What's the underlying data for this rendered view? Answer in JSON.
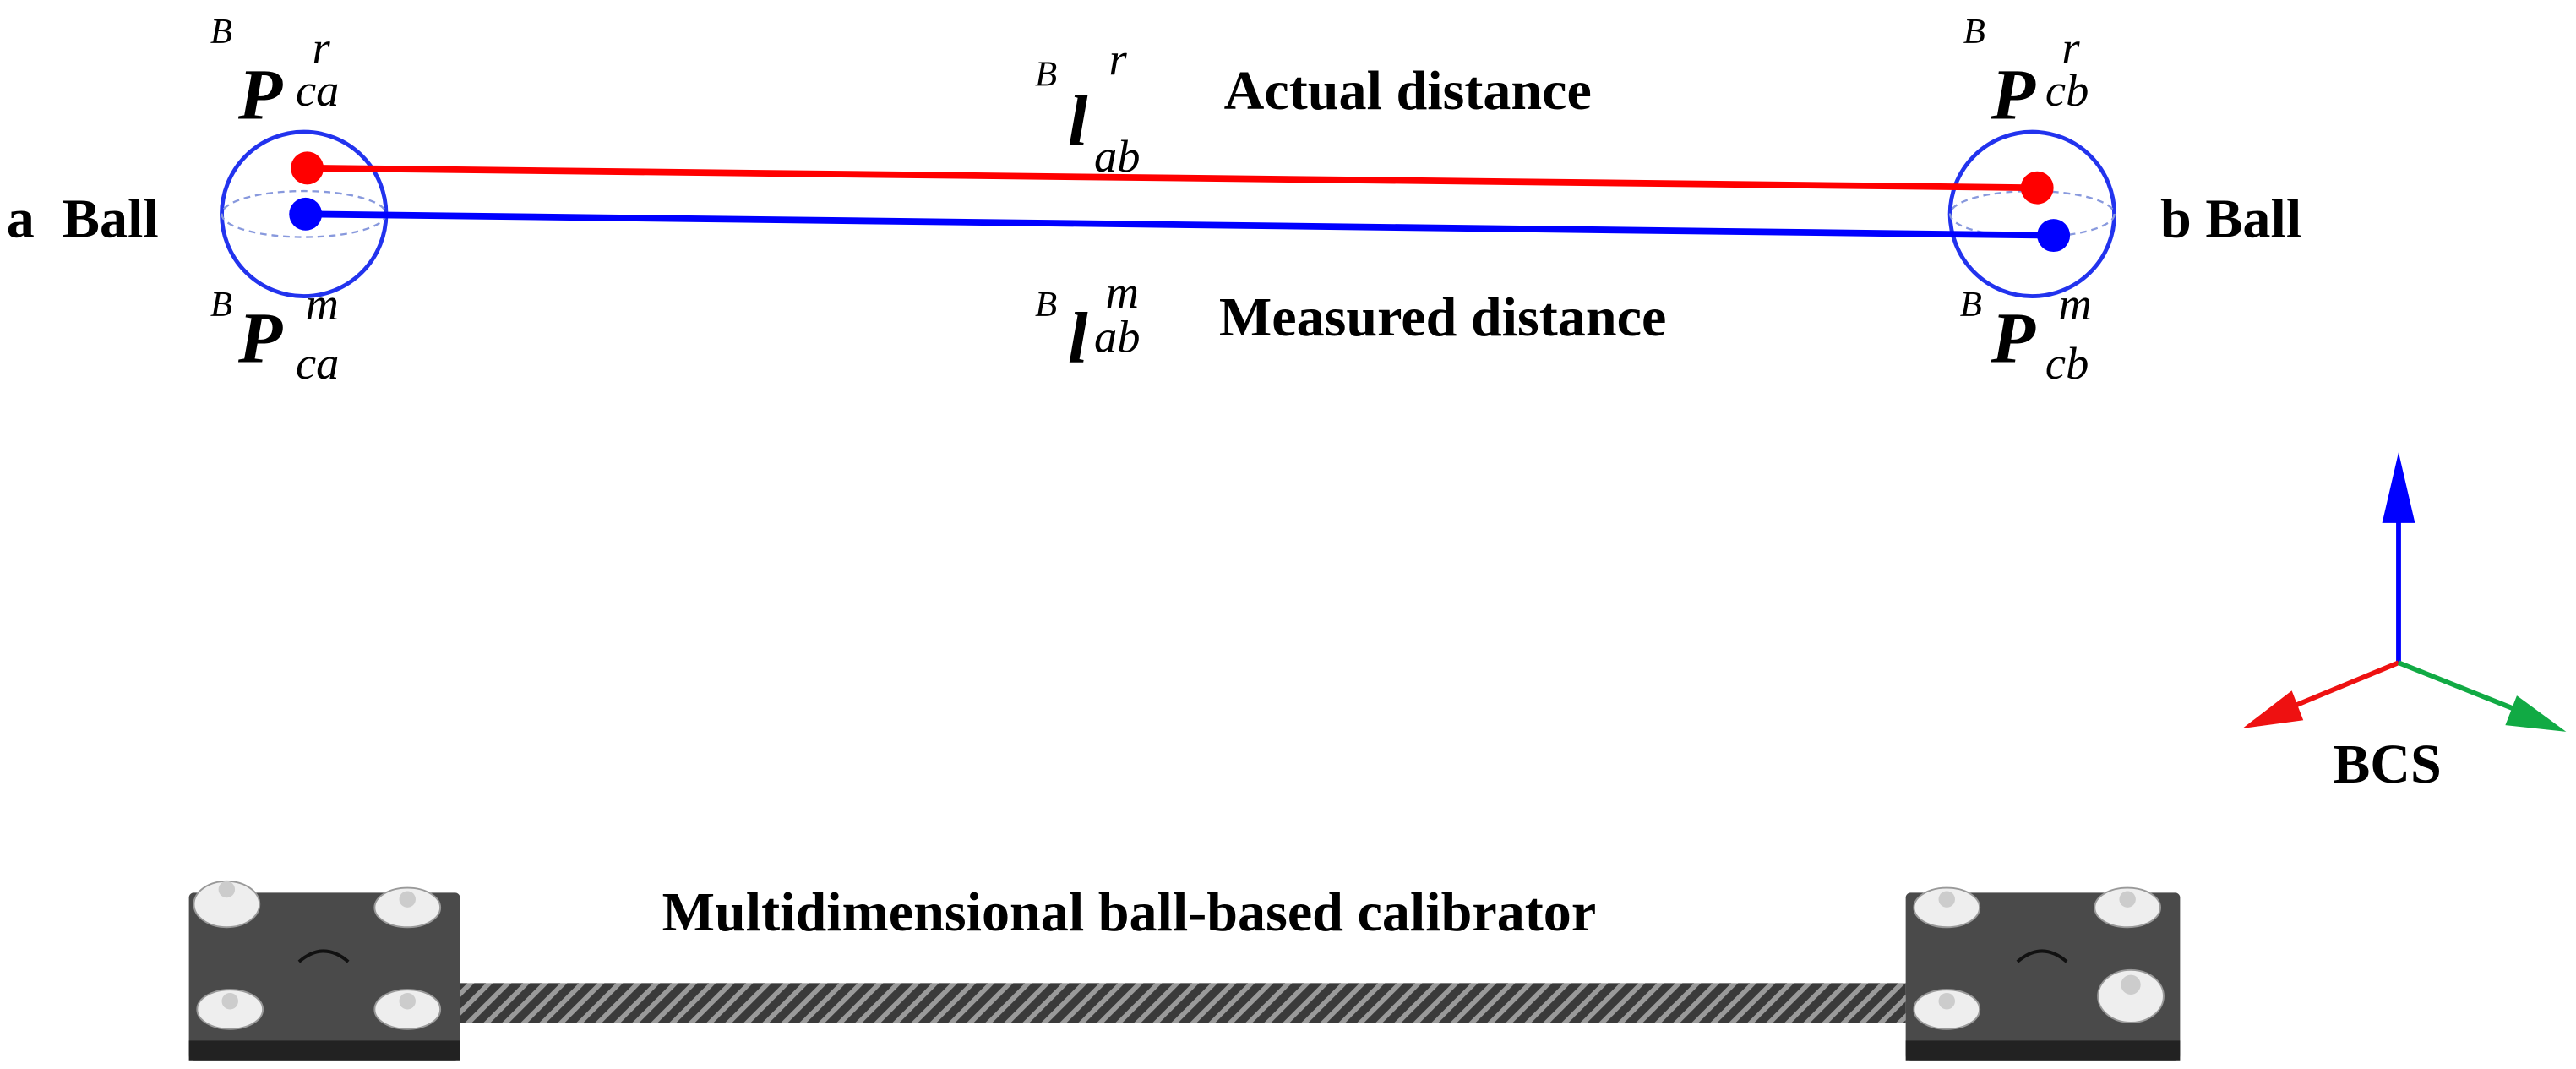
{
  "labels": {
    "ball_a": "a  Ball",
    "ball_b": "b Ball",
    "actual": "Actual distance",
    "measured": "Measured distance",
    "bcs": "BCS",
    "calibrator": "Multidimensional ball-based calibrator"
  },
  "symbols": [
    {
      "pre": "B",
      "main": "P",
      "sup": "r",
      "sub": "ca"
    },
    {
      "pre": "B",
      "main": "P",
      "sup": "m",
      "sub": "ca"
    },
    {
      "pre": "B",
      "main": "l",
      "sup": "r",
      "sub": "ab"
    },
    {
      "pre": "B",
      "main": "l",
      "sup": "m",
      "sub": "ab"
    },
    {
      "pre": "B",
      "main": "P",
      "sup": "r",
      "sub": "cb"
    },
    {
      "pre": "B",
      "main": "P",
      "sup": "m",
      "sub": "cb"
    }
  ]
}
